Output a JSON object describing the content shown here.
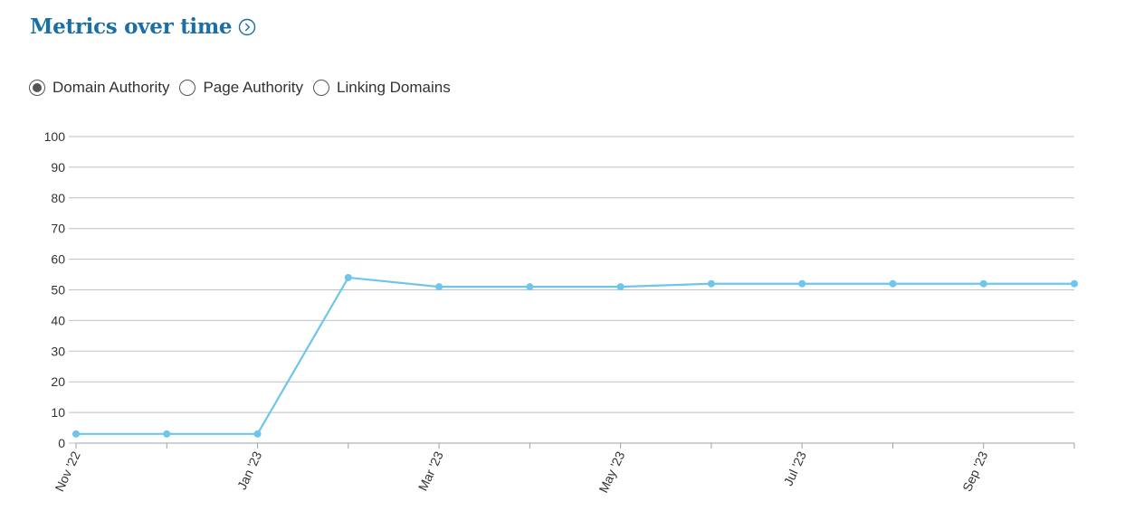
{
  "header": {
    "title": "Metrics over time"
  },
  "radios": [
    {
      "label": "Domain Authority",
      "selected": true
    },
    {
      "label": "Page Authority",
      "selected": false
    },
    {
      "label": "Linking Domains",
      "selected": false
    }
  ],
  "colors": {
    "title": "#1a6fa6",
    "series": "#6ec6ea",
    "grid": "#b8c2c8"
  },
  "chart_data": {
    "type": "line",
    "title": "",
    "xlabel": "",
    "ylabel": "",
    "ylim": [
      0,
      100
    ],
    "yticks": [
      0,
      10,
      20,
      30,
      40,
      50,
      60,
      70,
      80,
      90,
      100
    ],
    "x": [
      "Nov '22",
      "Dec '22",
      "Jan '23",
      "Feb '23",
      "Mar '23",
      "Apr '23",
      "May '23",
      "Jun '23",
      "Jul '23",
      "Aug '23",
      "Sep '23",
      "Oct '23"
    ],
    "xtick_labels": [
      "Nov '22",
      "",
      "Jan '23",
      "",
      "Mar '23",
      "",
      "May '23",
      "",
      "Jul '23",
      "",
      "Sep '23",
      ""
    ],
    "series": [
      {
        "values": [
          3,
          3,
          3,
          54,
          51,
          51,
          51,
          52,
          52,
          52,
          52,
          52
        ]
      }
    ],
    "grid": true
  }
}
